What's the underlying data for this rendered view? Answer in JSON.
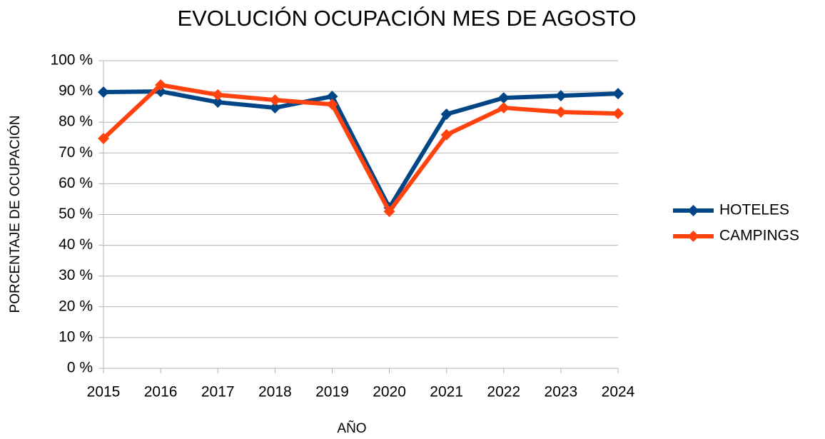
{
  "chart_data": {
    "type": "line",
    "title": "EVOLUCIÓN OCUPACIÓN MES DE AGOSTO",
    "x_label": "AÑO",
    "y_label": "PORCENTAJE DE OCUPACIÓN",
    "categories": [
      "2015",
      "2016",
      "2017",
      "2018",
      "2019",
      "2020",
      "2021",
      "2022",
      "2023",
      "2024"
    ],
    "series": [
      {
        "name": "HOTELES",
        "color": "#004586",
        "values": [
          89.8,
          90,
          86.5,
          84.7,
          88.4,
          52.2,
          82.6,
          87.9,
          88.6,
          89.3
        ]
      },
      {
        "name": "CAMPINGS",
        "color": "#ff420e",
        "values": [
          74.7,
          92.1,
          88.9,
          87.2,
          85.8,
          51,
          75.9,
          84.7,
          83.3,
          82.8
        ]
      }
    ],
    "ylim": [
      0,
      100
    ],
    "yticks": [
      {
        "value": 0,
        "label": "0 %"
      },
      {
        "value": 10,
        "label": "10 %"
      },
      {
        "value": 20,
        "label": "20 %"
      },
      {
        "value": 30,
        "label": "30 %"
      },
      {
        "value": 40,
        "label": "40 %"
      },
      {
        "value": 50,
        "label": "50 %"
      },
      {
        "value": 60,
        "label": "60 %"
      },
      {
        "value": 70,
        "label": "70 %"
      },
      {
        "value": 80,
        "label": "80 %"
      },
      {
        "value": 90,
        "label": "90 %"
      },
      {
        "value": 100,
        "label": "100 %"
      }
    ],
    "grid": true,
    "legend": "right"
  }
}
